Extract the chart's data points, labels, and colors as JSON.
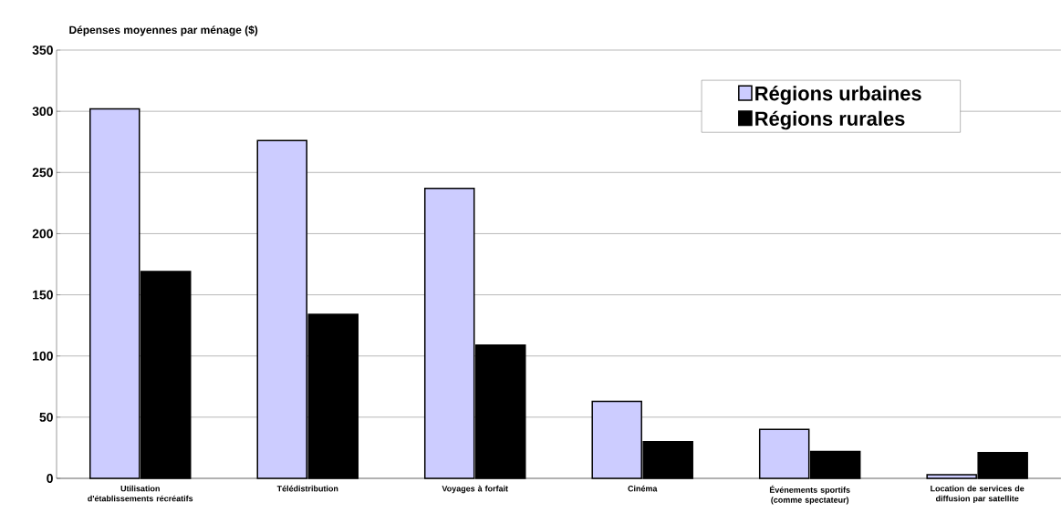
{
  "chart_data": {
    "type": "bar",
    "title": "Dépenses moyennes par ménage ($)",
    "categories": [
      "Utilisation d'établissements récréatifs",
      "Télédistribution",
      "Voyages à forfait",
      "Cinéma",
      "Événements sportifs (comme spectateur)",
      "Location de services de diffusion par satellite"
    ],
    "series": [
      {
        "name": "Régions urbaines",
        "color": "#ccccff",
        "values": [
          302,
          276,
          237,
          63,
          40,
          3
        ]
      },
      {
        "name": "Régions rurales",
        "color": "#000000",
        "values": [
          169,
          134,
          109,
          30,
          22,
          21
        ]
      }
    ],
    "ylim": [
      0,
      350
    ],
    "yticks": [
      0,
      50,
      100,
      150,
      200,
      250,
      300,
      350
    ],
    "grid": "y",
    "legend": "top right"
  }
}
